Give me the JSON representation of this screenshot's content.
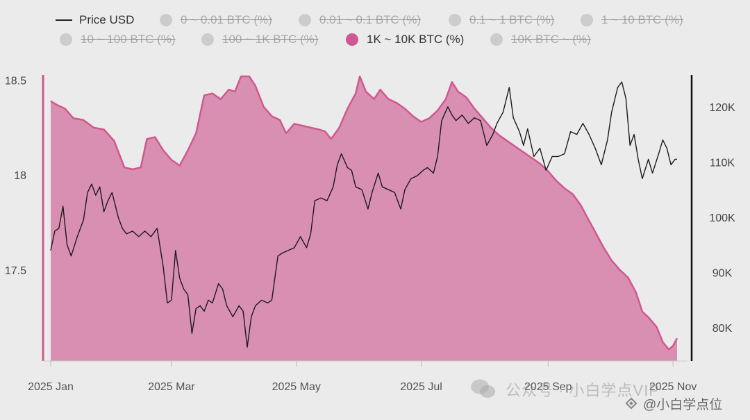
{
  "legend": [
    {
      "label": "Price USD",
      "kind": "line",
      "active": true
    },
    {
      "label": "0 ~ 0.01 BTC (%)",
      "kind": "dot",
      "active": false
    },
    {
      "label": "0.01 ~ 0.1 BTC (%)",
      "kind": "dot",
      "active": false
    },
    {
      "label": "0.1 ~ 1 BTC (%)",
      "kind": "dot",
      "active": false
    },
    {
      "label": "1 ~ 10 BTC (%)",
      "kind": "dot",
      "active": false
    },
    {
      "label": "10 ~ 100 BTC (%)",
      "kind": "dot",
      "active": false
    },
    {
      "label": "100 ~ 1K BTC (%)",
      "kind": "dot",
      "active": false
    },
    {
      "label": "1K ~ 10K BTC (%)",
      "kind": "dot",
      "active": true
    },
    {
      "label": "10K BTC ~ (%)",
      "kind": "dot",
      "active": false
    }
  ],
  "colors": {
    "area_fill": "#d98fb2",
    "area_stroke": "#d0588e",
    "price_line": "#1a1a1a",
    "inactive_dot": "#cccccc",
    "active_dot": "#d0588e",
    "background": "#ebebeb"
  },
  "watermark": {
    "text1": "公众号 · 小白学点VIP",
    "text2": "@小白学点位"
  },
  "chart_data": {
    "type": "area",
    "x_ticks": [
      "2025 Jan",
      "2025 Mar",
      "2025 May",
      "2025 Jul",
      "2025 Sep",
      "2025 Nov"
    ],
    "x_tick_dates": [
      "2025-01-01",
      "2025-03-01",
      "2025-05-01",
      "2025-07-01",
      "2025-09-01",
      "2025-11-01"
    ],
    "x_range": [
      "2025-01-01",
      "2025-11-03"
    ],
    "y_left": {
      "ticks": [
        "17.5",
        "18",
        "18.5"
      ],
      "tick_values": [
        17.5,
        18,
        18.5
      ],
      "range": [
        17.02,
        18.52
      ]
    },
    "y_right": {
      "ticks": [
        "80K",
        "90K",
        "100K",
        "110K",
        "120K"
      ],
      "tick_values": [
        80000,
        90000,
        100000,
        110000,
        120000
      ],
      "range": [
        74000,
        125500
      ]
    },
    "series": [
      {
        "name": "1K ~ 10K BTC (%)",
        "axis": "left",
        "type": "area",
        "points": [
          [
            "2025-01-01",
            18.39
          ],
          [
            "2025-01-04",
            18.37
          ],
          [
            "2025-01-08",
            18.35
          ],
          [
            "2025-01-12",
            18.3
          ],
          [
            "2025-01-17",
            18.29
          ],
          [
            "2025-01-22",
            18.25
          ],
          [
            "2025-01-27",
            18.24
          ],
          [
            "2025-02-01",
            18.18
          ],
          [
            "2025-02-06",
            18.04
          ],
          [
            "2025-02-10",
            18.03
          ],
          [
            "2025-02-14",
            18.04
          ],
          [
            "2025-02-17",
            18.19
          ],
          [
            "2025-02-21",
            18.2
          ],
          [
            "2025-02-25",
            18.13
          ],
          [
            "2025-03-01",
            18.08
          ],
          [
            "2025-03-05",
            18.05
          ],
          [
            "2025-03-09",
            18.13
          ],
          [
            "2025-03-13",
            18.22
          ],
          [
            "2025-03-17",
            18.42
          ],
          [
            "2025-03-21",
            18.43
          ],
          [
            "2025-03-25",
            18.4
          ],
          [
            "2025-03-29",
            18.45
          ],
          [
            "2025-04-01",
            18.44
          ],
          [
            "2025-04-04",
            18.52
          ],
          [
            "2025-04-08",
            18.52
          ],
          [
            "2025-04-11",
            18.47
          ],
          [
            "2025-04-15",
            18.36
          ],
          [
            "2025-04-19",
            18.31
          ],
          [
            "2025-04-23",
            18.29
          ],
          [
            "2025-04-26",
            18.22
          ],
          [
            "2025-04-30",
            18.27
          ],
          [
            "2025-05-04",
            18.26
          ],
          [
            "2025-05-08",
            18.25
          ],
          [
            "2025-05-12",
            18.24
          ],
          [
            "2025-05-15",
            18.23
          ],
          [
            "2025-05-18",
            18.19
          ],
          [
            "2025-05-22",
            18.25
          ],
          [
            "2025-05-26",
            18.35
          ],
          [
            "2025-05-30",
            18.43
          ],
          [
            "2025-06-01",
            18.52
          ],
          [
            "2025-06-04",
            18.44
          ],
          [
            "2025-06-08",
            18.4
          ],
          [
            "2025-06-11",
            18.45
          ],
          [
            "2025-06-15",
            18.4
          ],
          [
            "2025-06-19",
            18.38
          ],
          [
            "2025-06-23",
            18.35
          ],
          [
            "2025-06-27",
            18.31
          ],
          [
            "2025-07-01",
            18.28
          ],
          [
            "2025-07-05",
            18.3
          ],
          [
            "2025-07-09",
            18.34
          ],
          [
            "2025-07-13",
            18.4
          ],
          [
            "2025-07-16",
            18.49
          ],
          [
            "2025-07-19",
            18.44
          ],
          [
            "2025-07-23",
            18.41
          ],
          [
            "2025-07-27",
            18.35
          ],
          [
            "2025-07-31",
            18.3
          ],
          [
            "2025-08-04",
            18.25
          ],
          [
            "2025-08-08",
            18.21
          ],
          [
            "2025-08-12",
            18.18
          ],
          [
            "2025-08-16",
            18.15
          ],
          [
            "2025-08-20",
            18.12
          ],
          [
            "2025-08-24",
            18.09
          ],
          [
            "2025-08-28",
            18.06
          ],
          [
            "2025-09-01",
            18.02
          ],
          [
            "2025-09-05",
            17.97
          ],
          [
            "2025-09-09",
            17.93
          ],
          [
            "2025-09-13",
            17.9
          ],
          [
            "2025-09-17",
            17.84
          ],
          [
            "2025-09-20",
            17.78
          ],
          [
            "2025-09-24",
            17.7
          ],
          [
            "2025-09-28",
            17.62
          ],
          [
            "2025-10-02",
            17.55
          ],
          [
            "2025-10-06",
            17.5
          ],
          [
            "2025-10-10",
            17.46
          ],
          [
            "2025-10-14",
            17.38
          ],
          [
            "2025-10-17",
            17.28
          ],
          [
            "2025-10-20",
            17.25
          ],
          [
            "2025-10-24",
            17.2
          ],
          [
            "2025-10-27",
            17.12
          ],
          [
            "2025-10-30",
            17.08
          ],
          [
            "2025-11-01",
            17.1
          ],
          [
            "2025-11-03",
            17.14
          ]
        ]
      },
      {
        "name": "Price USD",
        "axis": "right",
        "type": "line",
        "points": [
          [
            "2025-01-01",
            94000
          ],
          [
            "2025-01-03",
            97500
          ],
          [
            "2025-01-05",
            98000
          ],
          [
            "2025-01-07",
            102000
          ],
          [
            "2025-01-09",
            95000
          ],
          [
            "2025-01-11",
            93000
          ],
          [
            "2025-01-14",
            96500
          ],
          [
            "2025-01-17",
            99500
          ],
          [
            "2025-01-19",
            104500
          ],
          [
            "2025-01-21",
            106000
          ],
          [
            "2025-01-23",
            104000
          ],
          [
            "2025-01-25",
            105500
          ],
          [
            "2025-01-27",
            101000
          ],
          [
            "2025-01-29",
            103000
          ],
          [
            "2025-01-31",
            104500
          ],
          [
            "2025-02-03",
            100000
          ],
          [
            "2025-02-05",
            98000
          ],
          [
            "2025-02-07",
            97000
          ],
          [
            "2025-02-10",
            97500
          ],
          [
            "2025-02-13",
            96500
          ],
          [
            "2025-02-16",
            97500
          ],
          [
            "2025-02-19",
            96500
          ],
          [
            "2025-02-22",
            98000
          ],
          [
            "2025-02-25",
            91000
          ],
          [
            "2025-02-27",
            84500
          ],
          [
            "2025-03-01",
            85000
          ],
          [
            "2025-03-03",
            94000
          ],
          [
            "2025-03-05",
            89000
          ],
          [
            "2025-03-07",
            87000
          ],
          [
            "2025-03-09",
            86000
          ],
          [
            "2025-03-11",
            79000
          ],
          [
            "2025-03-13",
            83500
          ],
          [
            "2025-03-15",
            84000
          ],
          [
            "2025-03-17",
            83000
          ],
          [
            "2025-03-19",
            85000
          ],
          [
            "2025-03-21",
            84500
          ],
          [
            "2025-03-24",
            88000
          ],
          [
            "2025-03-26",
            87000
          ],
          [
            "2025-03-28",
            84000
          ],
          [
            "2025-03-31",
            82000
          ],
          [
            "2025-04-03",
            84000
          ],
          [
            "2025-04-05",
            83000
          ],
          [
            "2025-04-07",
            76500
          ],
          [
            "2025-04-09",
            82000
          ],
          [
            "2025-04-11",
            84000
          ],
          [
            "2025-04-14",
            85000
          ],
          [
            "2025-04-17",
            84500
          ],
          [
            "2025-04-19",
            85000
          ],
          [
            "2025-04-22",
            93000
          ],
          [
            "2025-04-24",
            93500
          ],
          [
            "2025-04-27",
            94000
          ],
          [
            "2025-04-30",
            94500
          ],
          [
            "2025-05-03",
            96500
          ],
          [
            "2025-05-06",
            94500
          ],
          [
            "2025-05-08",
            97000
          ],
          [
            "2025-05-10",
            103000
          ],
          [
            "2025-05-13",
            103500
          ],
          [
            "2025-05-16",
            103000
          ],
          [
            "2025-05-19",
            105500
          ],
          [
            "2025-05-21",
            109500
          ],
          [
            "2025-05-23",
            111500
          ],
          [
            "2025-05-26",
            109000
          ],
          [
            "2025-05-28",
            108500
          ],
          [
            "2025-05-30",
            105500
          ],
          [
            "2025-06-02",
            105000
          ],
          [
            "2025-06-05",
            101500
          ],
          [
            "2025-06-07",
            104500
          ],
          [
            "2025-06-10",
            108000
          ],
          [
            "2025-06-12",
            105500
          ],
          [
            "2025-06-15",
            105000
          ],
          [
            "2025-06-18",
            104500
          ],
          [
            "2025-06-21",
            101500
          ],
          [
            "2025-06-23",
            105000
          ],
          [
            "2025-06-26",
            107000
          ],
          [
            "2025-06-29",
            107500
          ],
          [
            "2025-07-02",
            108500
          ],
          [
            "2025-07-04",
            109000
          ],
          [
            "2025-07-07",
            108000
          ],
          [
            "2025-07-09",
            111000
          ],
          [
            "2025-07-11",
            117500
          ],
          [
            "2025-07-14",
            120000
          ],
          [
            "2025-07-16",
            118500
          ],
          [
            "2025-07-18",
            117500
          ],
          [
            "2025-07-21",
            118500
          ],
          [
            "2025-07-24",
            117000
          ],
          [
            "2025-07-27",
            118000
          ],
          [
            "2025-07-30",
            117500
          ],
          [
            "2025-08-02",
            113000
          ],
          [
            "2025-08-05",
            115000
          ],
          [
            "2025-08-07",
            117000
          ],
          [
            "2025-08-10",
            119000
          ],
          [
            "2025-08-13",
            123500
          ],
          [
            "2025-08-15",
            118000
          ],
          [
            "2025-08-18",
            115500
          ],
          [
            "2025-08-20",
            113000
          ],
          [
            "2025-08-22",
            116000
          ],
          [
            "2025-08-25",
            111000
          ],
          [
            "2025-08-28",
            112500
          ],
          [
            "2025-08-31",
            108500
          ],
          [
            "2025-09-03",
            111000
          ],
          [
            "2025-09-06",
            111000
          ],
          [
            "2025-09-09",
            111500
          ],
          [
            "2025-09-12",
            115500
          ],
          [
            "2025-09-15",
            115000
          ],
          [
            "2025-09-18",
            117000
          ],
          [
            "2025-09-21",
            115000
          ],
          [
            "2025-09-24",
            112500
          ],
          [
            "2025-09-27",
            109500
          ],
          [
            "2025-09-30",
            114000
          ],
          [
            "2025-10-02",
            119000
          ],
          [
            "2025-10-05",
            123500
          ],
          [
            "2025-10-07",
            124500
          ],
          [
            "2025-10-09",
            121500
          ],
          [
            "2025-10-11",
            113000
          ],
          [
            "2025-10-13",
            115000
          ],
          [
            "2025-10-15",
            110500
          ],
          [
            "2025-10-17",
            107000
          ],
          [
            "2025-10-20",
            110500
          ],
          [
            "2025-10-22",
            108000
          ],
          [
            "2025-10-25",
            111500
          ],
          [
            "2025-10-27",
            114000
          ],
          [
            "2025-10-29",
            112500
          ],
          [
            "2025-10-31",
            109500
          ],
          [
            "2025-11-02",
            110500
          ],
          [
            "2025-11-03",
            110500
          ]
        ]
      }
    ]
  }
}
